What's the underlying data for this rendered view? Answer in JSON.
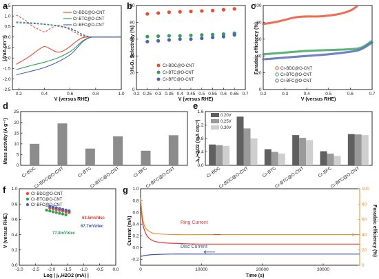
{
  "colors": {
    "bdc": "#ee4a2b",
    "btc": "#34a05a",
    "bfc": "#4a63b8",
    "ring": "#e8372c",
    "disc": "#3b55a8",
    "orange_axis": "#f08a24"
  },
  "panels": {
    "a": {
      "label": "a",
      "ylabel": "j (mA cm⁻²)",
      "xlabel": "V (versus RHE)",
      "legend": [
        "Cr-BDC@O-CNT",
        "Cr-BTC@O-CNT",
        "Cr-BFC@O-CNT"
      ]
    },
    "b": {
      "label": "b",
      "ylabel": "H₂O₂ Selectivity (%)",
      "xlabel": "V (versus RHE)",
      "legend": [
        "Cr-BDC@O-CNT",
        "Cr-BTC@O-CNT",
        "Cr-BFC@O-CNT"
      ]
    },
    "c": {
      "label": "c",
      "ylabel": "Faradaic efficiency (%)",
      "xlabel": "V (versus RHE)",
      "legend": [
        "Cr-BDC@O-CNT",
        "Cr-BTC@O-CNT",
        "Cr-BFC@O-CNT"
      ]
    },
    "d": {
      "label": "d",
      "ylabel": "Mass activity (A g⁻¹)"
    },
    "e": {
      "label": "e",
      "ylabel": "Jₖ,H2O2 (mA cm⁻²)",
      "legend": [
        "0.20V",
        "0.25V",
        "0.30V"
      ]
    },
    "f": {
      "label": "f",
      "ylabel": "V (versus RHE)",
      "xlabel": "Log | jₖ,H2O2 (mA) |",
      "legend": [
        "Cr-BDC@O-CNT",
        "Cr-BTC@O-CNT",
        "Cr-BFC@O-CNT"
      ],
      "slopes": [
        "63.5mV/dec",
        "67.7mV/dec",
        "77.8mV/dec"
      ]
    },
    "g": {
      "label": "g",
      "ylabel_left": "Current (mA)",
      "ylabel_right": "Faradaic efficiency (%)",
      "xlabel": "Time (s)",
      "ring_label": "Ring Current",
      "disc_label": "Disc Current"
    }
  },
  "chart_data": [
    {
      "id": "a",
      "type": "line",
      "xlim": [
        0.15,
        1.0
      ],
      "ylim": [
        -2.5,
        1.5
      ],
      "xticks": [
        "0.2",
        "0.4",
        "0.6",
        "0.8",
        "1.0"
      ],
      "yticks": [
        "-2.5",
        "-2.0",
        "-1.5",
        "-1.0",
        "-0.5",
        "0.0",
        "0.5",
        "1.0",
        "1.5"
      ],
      "series": [
        {
          "name": "Cr-BDC@O-CNT",
          "kind": "disk",
          "x": [
            0.18,
            0.25,
            0.3,
            0.35,
            0.4,
            0.45,
            0.5,
            0.55,
            0.6,
            0.65,
            0.7,
            0.75,
            0.8,
            1.0
          ],
          "y": [
            -1.3,
            -1.05,
            -0.85,
            -0.62,
            -0.45,
            -0.58,
            -0.72,
            -0.65,
            -0.45,
            -0.2,
            -0.03,
            0.0,
            0.0,
            0.0
          ]
        },
        {
          "name": "Cr-BDC@O-CNT",
          "kind": "ring",
          "x": [
            0.18,
            0.25,
            0.3,
            0.35,
            0.4,
            0.45,
            0.5,
            0.55,
            0.6,
            0.65,
            0.7,
            0.75,
            0.8,
            1.0
          ],
          "y": [
            1.05,
            0.8,
            0.55,
            0.38,
            0.25,
            0.42,
            0.55,
            0.48,
            0.35,
            0.18,
            0.04,
            0.0,
            0.0,
            0.0
          ]
        },
        {
          "name": "Cr-BTC@O-CNT",
          "kind": "disk",
          "x": [
            0.18,
            0.3,
            0.4,
            0.5,
            0.6,
            0.65,
            0.7,
            0.75,
            0.8,
            1.0
          ],
          "y": [
            -1.55,
            -1.35,
            -1.2,
            -1.0,
            -0.7,
            -0.45,
            -0.18,
            -0.03,
            0.0,
            0.0
          ]
        },
        {
          "name": "Cr-BTC@O-CNT",
          "kind": "ring",
          "x": [
            0.18,
            0.3,
            0.4,
            0.5,
            0.6,
            0.65,
            0.7,
            0.75,
            0.8,
            1.0
          ],
          "y": [
            0.72,
            0.68,
            0.62,
            0.55,
            0.42,
            0.28,
            0.12,
            0.02,
            0.0,
            0.0
          ]
        },
        {
          "name": "Cr-BFC@O-CNT",
          "kind": "disk",
          "x": [
            0.18,
            0.3,
            0.4,
            0.5,
            0.6,
            0.65,
            0.7,
            0.75,
            0.8,
            1.0
          ],
          "y": [
            -1.8,
            -1.62,
            -1.45,
            -1.2,
            -0.85,
            -0.55,
            -0.22,
            -0.04,
            0.0,
            0.0
          ]
        },
        {
          "name": "Cr-BFC@O-CNT",
          "kind": "ring",
          "x": [
            0.18,
            0.3,
            0.4,
            0.5,
            0.6,
            0.65,
            0.7,
            0.75,
            0.8,
            1.0
          ],
          "y": [
            0.68,
            0.64,
            0.6,
            0.52,
            0.4,
            0.26,
            0.1,
            0.02,
            0.0,
            0.0
          ]
        }
      ]
    },
    {
      "id": "b",
      "type": "scatter",
      "xlim": [
        0.2,
        0.7
      ],
      "ylim": [
        0,
        100
      ],
      "xticks": [
        "0.2",
        "0.25",
        "0.3",
        "0.35",
        "0.4",
        "0.45",
        "0.5",
        "0.55",
        "0.6",
        "0.65",
        "0.7"
      ],
      "yticks": [
        "0",
        "20",
        "40",
        "60",
        "80",
        "100"
      ],
      "series": [
        {
          "name": "Cr-BDC@O-CNT",
          "x": [
            0.25,
            0.3,
            0.35,
            0.4,
            0.45,
            0.5,
            0.55,
            0.6,
            0.65
          ],
          "y": [
            90,
            91,
            92,
            92.5,
            93,
            93.5,
            94,
            95,
            96
          ]
        },
        {
          "name": "Cr-BTC@O-CNT",
          "x": [
            0.25,
            0.3,
            0.35,
            0.4,
            0.45,
            0.5,
            0.55,
            0.6,
            0.65
          ],
          "y": [
            63,
            63.5,
            64,
            64,
            64.5,
            65,
            65.5,
            66,
            67
          ]
        },
        {
          "name": "Cr-BFC@O-CNT",
          "x": [
            0.25,
            0.3,
            0.35,
            0.4,
            0.45,
            0.5,
            0.55,
            0.6,
            0.65
          ],
          "y": [
            57,
            58,
            59,
            60,
            60,
            61,
            62,
            63,
            65
          ]
        }
      ]
    },
    {
      "id": "c",
      "type": "scatter",
      "xlim": [
        0.2,
        0.7
      ],
      "ylim": [
        0,
        100
      ],
      "xticks": [
        "0.2",
        "0.3",
        "0.4",
        "0.5",
        "0.6",
        "0.7"
      ],
      "yticks": [
        "0",
        "20",
        "40",
        "60",
        "80",
        "100"
      ],
      "series": [
        {
          "name": "Cr-BDC@O-CNT",
          "x": [
            0.2,
            0.25,
            0.3,
            0.35,
            0.4,
            0.45,
            0.5,
            0.55,
            0.6,
            0.63
          ],
          "y": [
            78,
            80,
            83,
            86,
            87,
            87,
            88,
            90,
            94,
            99
          ]
        },
        {
          "name": "Cr-BTC@O-CNT",
          "x": [
            0.2,
            0.3,
            0.4,
            0.5,
            0.6,
            0.65,
            0.7
          ],
          "y": [
            42,
            44,
            46,
            47,
            48,
            50,
            58
          ]
        },
        {
          "name": "Cr-BFC@O-CNT",
          "x": [
            0.2,
            0.3,
            0.4,
            0.5,
            0.6,
            0.65,
            0.7
          ],
          "y": [
            36,
            38,
            40,
            42,
            45,
            48,
            56
          ]
        }
      ]
    },
    {
      "id": "d",
      "type": "bar",
      "categories": [
        "Cr-BDC",
        "Cr-BDC@O-CNT",
        "Cr-BTC",
        "Cr-BTC@O-CNT",
        "Cr-BFC",
        "Cr-BFC@O-CNT"
      ],
      "values": [
        10,
        19.5,
        7.8,
        13.5,
        6.8,
        14
      ],
      "ylim": [
        0,
        25
      ],
      "yticks": [
        "0",
        "5",
        "10",
        "15",
        "20",
        "25"
      ]
    },
    {
      "id": "e",
      "type": "bar",
      "categories": [
        "Cr-BDC",
        "Cr-BDC@O-CNT",
        "Cr-BTC",
        "Cr-BTC@O-CNT",
        "Cr-BFC",
        "Cr-BFC@O-CNT"
      ],
      "series": [
        {
          "name": "0.20V",
          "values": [
            0.62,
            1.45,
            0.48,
            0.9,
            0.42,
            0.93
          ]
        },
        {
          "name": "0.25V",
          "values": [
            0.6,
            1.1,
            0.4,
            0.82,
            0.35,
            0.92
          ]
        },
        {
          "name": "0.30V",
          "values": [
            0.58,
            0.8,
            0.35,
            0.75,
            0.28,
            0.9
          ]
        }
      ],
      "ylim": [
        0,
        1.6
      ],
      "yticks": [
        "0.0",
        "0.4",
        "0.8",
        "1.2",
        "1.6"
      ]
    },
    {
      "id": "f",
      "type": "scatter",
      "xlim": [
        -3.0,
        0.0
      ],
      "ylim": [
        0.0,
        1.0
      ],
      "xticks": [
        "-3.0",
        "-2.5",
        "-2.0",
        "-1.5",
        "-1.0",
        "-0.5",
        "0.0"
      ],
      "yticks": [
        "0.0",
        "0.2",
        "0.4",
        "0.6",
        "0.8",
        "1.0"
      ],
      "series": [
        {
          "name": "Cr-BDC@O-CNT",
          "x": [
            -2.05,
            -1.95,
            -1.85,
            -1.75,
            -1.65,
            -1.55,
            -1.45
          ],
          "y": [
            0.75,
            0.74,
            0.73,
            0.72,
            0.71,
            0.7,
            0.69
          ]
        },
        {
          "name": "Cr-BTC@O-CNT",
          "x": [
            -2.15,
            -2.05,
            -1.95,
            -1.85,
            -1.75,
            -1.65,
            -1.55
          ],
          "y": [
            0.72,
            0.71,
            0.7,
            0.69,
            0.68,
            0.67,
            0.66
          ]
        },
        {
          "name": "Cr-BFC@O-CNT",
          "x": [
            -2.05,
            -1.95,
            -1.85,
            -1.75,
            -1.65,
            -1.55,
            -1.45
          ],
          "y": [
            0.77,
            0.76,
            0.75,
            0.74,
            0.73,
            0.72,
            0.71
          ]
        }
      ]
    },
    {
      "id": "g",
      "type": "line",
      "xlim": [
        0,
        36000
      ],
      "ylim": [
        -0.3,
        1.0
      ],
      "ylim_right": [
        0,
        100
      ],
      "xticks": [
        "0",
        "10000",
        "20000",
        "30000"
      ],
      "yticks": [
        "-0.2",
        "0.0",
        "0.2",
        "0.4",
        "0.6",
        "0.8",
        "1.0"
      ],
      "yticks_right": [
        "0",
        "20",
        "40",
        "60",
        "80",
        "100"
      ],
      "series": [
        {
          "name": "Ring Current",
          "x": [
            0,
            300,
            800,
            1500,
            2500,
            4000,
            6000,
            10000,
            20000,
            30000,
            36000
          ],
          "y": [
            0.85,
            0.45,
            0.25,
            0.15,
            0.1,
            0.08,
            0.07,
            0.06,
            0.06,
            0.06,
            0.06
          ]
        },
        {
          "name": "Disc Current",
          "x": [
            0,
            1000,
            2000,
            5000,
            10000,
            20000,
            30000,
            36000
          ],
          "y": [
            -0.15,
            -0.13,
            -0.12,
            -0.11,
            -0.11,
            -0.11,
            -0.11,
            -0.11
          ]
        },
        {
          "name": "Faradaic efficiency",
          "x": [
            0,
            500,
            1500,
            3000,
            6000,
            10000,
            20000,
            30000,
            36000
          ],
          "y": [
            88,
            55,
            44,
            41,
            40,
            40,
            40,
            40,
            40
          ]
        }
      ]
    }
  ]
}
